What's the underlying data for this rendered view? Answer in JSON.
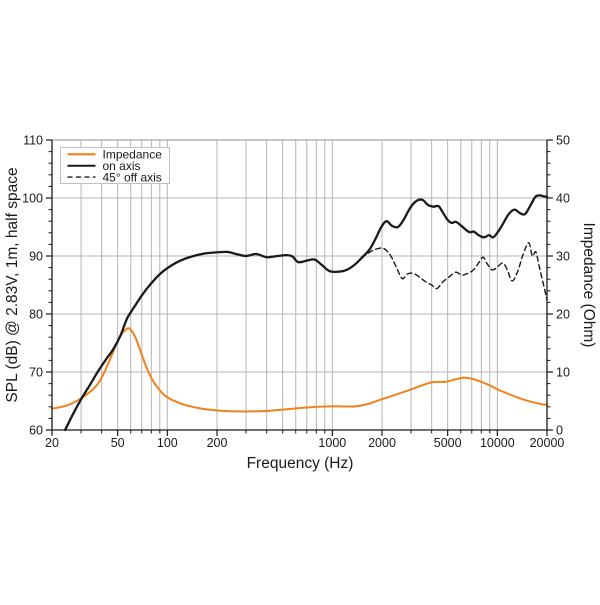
{
  "chart_data": {
    "type": "line",
    "xlabel": "Frequency (Hz)",
    "ylabel_left": "SPL (dB) @ 2.83V, 1m, half space",
    "ylabel_right": "Impedance (Ohm)",
    "x_scale": "log",
    "xlim": [
      20,
      20000
    ],
    "ylim_left": [
      60,
      110
    ],
    "ylim_right": [
      0,
      50
    ],
    "grid": true,
    "x_ticks_major": [
      20,
      50,
      100,
      200,
      1000,
      2000,
      5000,
      10000,
      20000
    ],
    "x_ticks_minor": [
      30,
      40,
      60,
      70,
      80,
      90,
      300,
      400,
      500,
      600,
      700,
      800,
      900,
      3000,
      4000,
      6000,
      7000,
      8000,
      9000
    ],
    "x_gridlines": [
      30,
      40,
      50,
      60,
      70,
      80,
      90,
      100,
      200,
      300,
      400,
      500,
      600,
      700,
      800,
      900,
      1000,
      2000,
      3000,
      4000,
      5000,
      6000,
      7000,
      8000,
      9000,
      10000
    ],
    "y_left_ticks_major": [
      60,
      70,
      80,
      90,
      100,
      110
    ],
    "y_left_minor_step": 2,
    "y_right_ticks_major": [
      0,
      10,
      20,
      30,
      40,
      50
    ],
    "y_right_minor_step": 2,
    "y_gridlines_left": [
      70,
      80,
      90,
      100
    ],
    "colors": {
      "impedance": "#F0821E",
      "spl": "#1a1a1a",
      "grid": "#b4b4b4",
      "frame_top": "#a8a8a8",
      "axis": "#1a1a1a",
      "legend_border": "#c0c0c0"
    },
    "legend": {
      "position": "top-left",
      "items": [
        {
          "label": "Impedance",
          "color": "#F0821E",
          "dash": "solid"
        },
        {
          "label": "on axis",
          "color": "#1a1a1a",
          "dash": "solid"
        },
        {
          "label": "45° off axis",
          "color": "#1a1a1a",
          "dash": "dashed"
        }
      ]
    },
    "series": [
      {
        "name": "Impedance",
        "axis": "right",
        "unit": "Ohm",
        "style": "solid",
        "color": "#F0821E",
        "points": [
          [
            20,
            3.7
          ],
          [
            23,
            4.0
          ],
          [
            26,
            4.5
          ],
          [
            29,
            5.2
          ],
          [
            32,
            6.0
          ],
          [
            35,
            6.9
          ],
          [
            38,
            8.0
          ],
          [
            41,
            9.6
          ],
          [
            44,
            11.6
          ],
          [
            47,
            13.5
          ],
          [
            50,
            15.3
          ],
          [
            53,
            16.6
          ],
          [
            56,
            17.3
          ],
          [
            58,
            17.55
          ],
          [
            60,
            17.3
          ],
          [
            63,
            16.4
          ],
          [
            66,
            15.0
          ],
          [
            70,
            13.0
          ],
          [
            74,
            11.1
          ],
          [
            78,
            9.6
          ],
          [
            83,
            8.2
          ],
          [
            89,
            7.0
          ],
          [
            96,
            6.0
          ],
          [
            105,
            5.3
          ],
          [
            115,
            4.8
          ],
          [
            128,
            4.3
          ],
          [
            142,
            4.0
          ],
          [
            160,
            3.7
          ],
          [
            180,
            3.5
          ],
          [
            205,
            3.35
          ],
          [
            235,
            3.25
          ],
          [
            270,
            3.2
          ],
          [
            320,
            3.2
          ],
          [
            380,
            3.25
          ],
          [
            450,
            3.4
          ],
          [
            540,
            3.6
          ],
          [
            640,
            3.8
          ],
          [
            760,
            3.95
          ],
          [
            900,
            4.05
          ],
          [
            1050,
            4.1
          ],
          [
            1200,
            4.05
          ],
          [
            1400,
            4.1
          ],
          [
            1650,
            4.5
          ],
          [
            1900,
            5.1
          ],
          [
            2200,
            5.7
          ],
          [
            2600,
            6.4
          ],
          [
            3000,
            7.0
          ],
          [
            3500,
            7.7
          ],
          [
            4000,
            8.2
          ],
          [
            4400,
            8.3
          ],
          [
            4800,
            8.3
          ],
          [
            5200,
            8.5
          ],
          [
            5700,
            8.8
          ],
          [
            6200,
            9.0
          ],
          [
            6700,
            8.95
          ],
          [
            7300,
            8.7
          ],
          [
            8000,
            8.3
          ],
          [
            9000,
            7.7
          ],
          [
            10000,
            7.0
          ],
          [
            11500,
            6.3
          ],
          [
            13000,
            5.7
          ],
          [
            15000,
            5.1
          ],
          [
            17000,
            4.7
          ],
          [
            18500,
            4.45
          ],
          [
            20000,
            4.35
          ]
        ]
      },
      {
        "name": "on axis",
        "axis": "left",
        "unit": "dB",
        "style": "solid",
        "color": "#1a1a1a",
        "points": [
          [
            24,
            60
          ],
          [
            27,
            62.9
          ],
          [
            30,
            65.3
          ],
          [
            34,
            67.8
          ],
          [
            38,
            70.1
          ],
          [
            43,
            72.4
          ],
          [
            47,
            73.9
          ],
          [
            52,
            76.3
          ],
          [
            57,
            79.2
          ],
          [
            63,
            81.2
          ],
          [
            70,
            83.2
          ],
          [
            80,
            85.3
          ],
          [
            92,
            87.1
          ],
          [
            105,
            88.3
          ],
          [
            120,
            89.2
          ],
          [
            140,
            89.9
          ],
          [
            165,
            90.4
          ],
          [
            195,
            90.6
          ],
          [
            230,
            90.7
          ],
          [
            265,
            90.3
          ],
          [
            300,
            90.0
          ],
          [
            345,
            90.35
          ],
          [
            400,
            89.8
          ],
          [
            465,
            90.0
          ],
          [
            530,
            90.15
          ],
          [
            575,
            89.9
          ],
          [
            620,
            88.95
          ],
          [
            700,
            89.2
          ],
          [
            780,
            89.4
          ],
          [
            860,
            88.5
          ],
          [
            960,
            87.4
          ],
          [
            1080,
            87.3
          ],
          [
            1220,
            87.6
          ],
          [
            1380,
            88.6
          ],
          [
            1520,
            89.8
          ],
          [
            1680,
            91.1
          ],
          [
            1830,
            93.0
          ],
          [
            1980,
            95.0
          ],
          [
            2130,
            96.0
          ],
          [
            2300,
            95.2
          ],
          [
            2500,
            95.0
          ],
          [
            2700,
            96.2
          ],
          [
            2950,
            98.2
          ],
          [
            3200,
            99.4
          ],
          [
            3500,
            99.7
          ],
          [
            3800,
            98.8
          ],
          [
            4100,
            98.5
          ],
          [
            4400,
            98.6
          ],
          [
            4700,
            97.4
          ],
          [
            5000,
            96.2
          ],
          [
            5300,
            95.7
          ],
          [
            5600,
            95.9
          ],
          [
            6000,
            95.3
          ],
          [
            6400,
            94.6
          ],
          [
            6800,
            94.1
          ],
          [
            7200,
            94.2
          ],
          [
            7700,
            93.6
          ],
          [
            8300,
            93.2
          ],
          [
            8900,
            93.6
          ],
          [
            9400,
            93.2
          ],
          [
            10000,
            94.0
          ],
          [
            10800,
            95.5
          ],
          [
            11700,
            97.2
          ],
          [
            12700,
            98.0
          ],
          [
            13700,
            97.4
          ],
          [
            14700,
            97.2
          ],
          [
            15800,
            98.6
          ],
          [
            17000,
            100.2
          ],
          [
            18000,
            100.45
          ],
          [
            19000,
            100.3
          ],
          [
            20000,
            100.2
          ]
        ]
      },
      {
        "name": "45° off axis",
        "axis": "left",
        "unit": "dB",
        "style": "dashed",
        "color": "#1a1a1a",
        "points": [
          [
            1500,
            89.6
          ],
          [
            1650,
            90.5
          ],
          [
            1850,
            91.2
          ],
          [
            2050,
            91.3
          ],
          [
            2250,
            90.1
          ],
          [
            2450,
            88.0
          ],
          [
            2650,
            86.1
          ],
          [
            2850,
            86.9
          ],
          [
            3100,
            87.0
          ],
          [
            3400,
            86.3
          ],
          [
            3700,
            85.5
          ],
          [
            4000,
            85.0
          ],
          [
            4300,
            84.4
          ],
          [
            4700,
            85.6
          ],
          [
            5100,
            86.4
          ],
          [
            5600,
            87.2
          ],
          [
            6100,
            86.7
          ],
          [
            6600,
            87.0
          ],
          [
            7100,
            87.5
          ],
          [
            7700,
            88.8
          ],
          [
            8200,
            89.8
          ],
          [
            8700,
            88.6
          ],
          [
            9300,
            87.6
          ],
          [
            10000,
            88.1
          ],
          [
            10800,
            88.8
          ],
          [
            11500,
            87.6
          ],
          [
            12300,
            85.7
          ],
          [
            13300,
            87.4
          ],
          [
            14300,
            90.2
          ],
          [
            15500,
            92.3
          ],
          [
            16300,
            90.0
          ],
          [
            17100,
            90.7
          ],
          [
            18000,
            88.0
          ],
          [
            19000,
            85.2
          ],
          [
            20000,
            82.4
          ]
        ]
      }
    ]
  }
}
